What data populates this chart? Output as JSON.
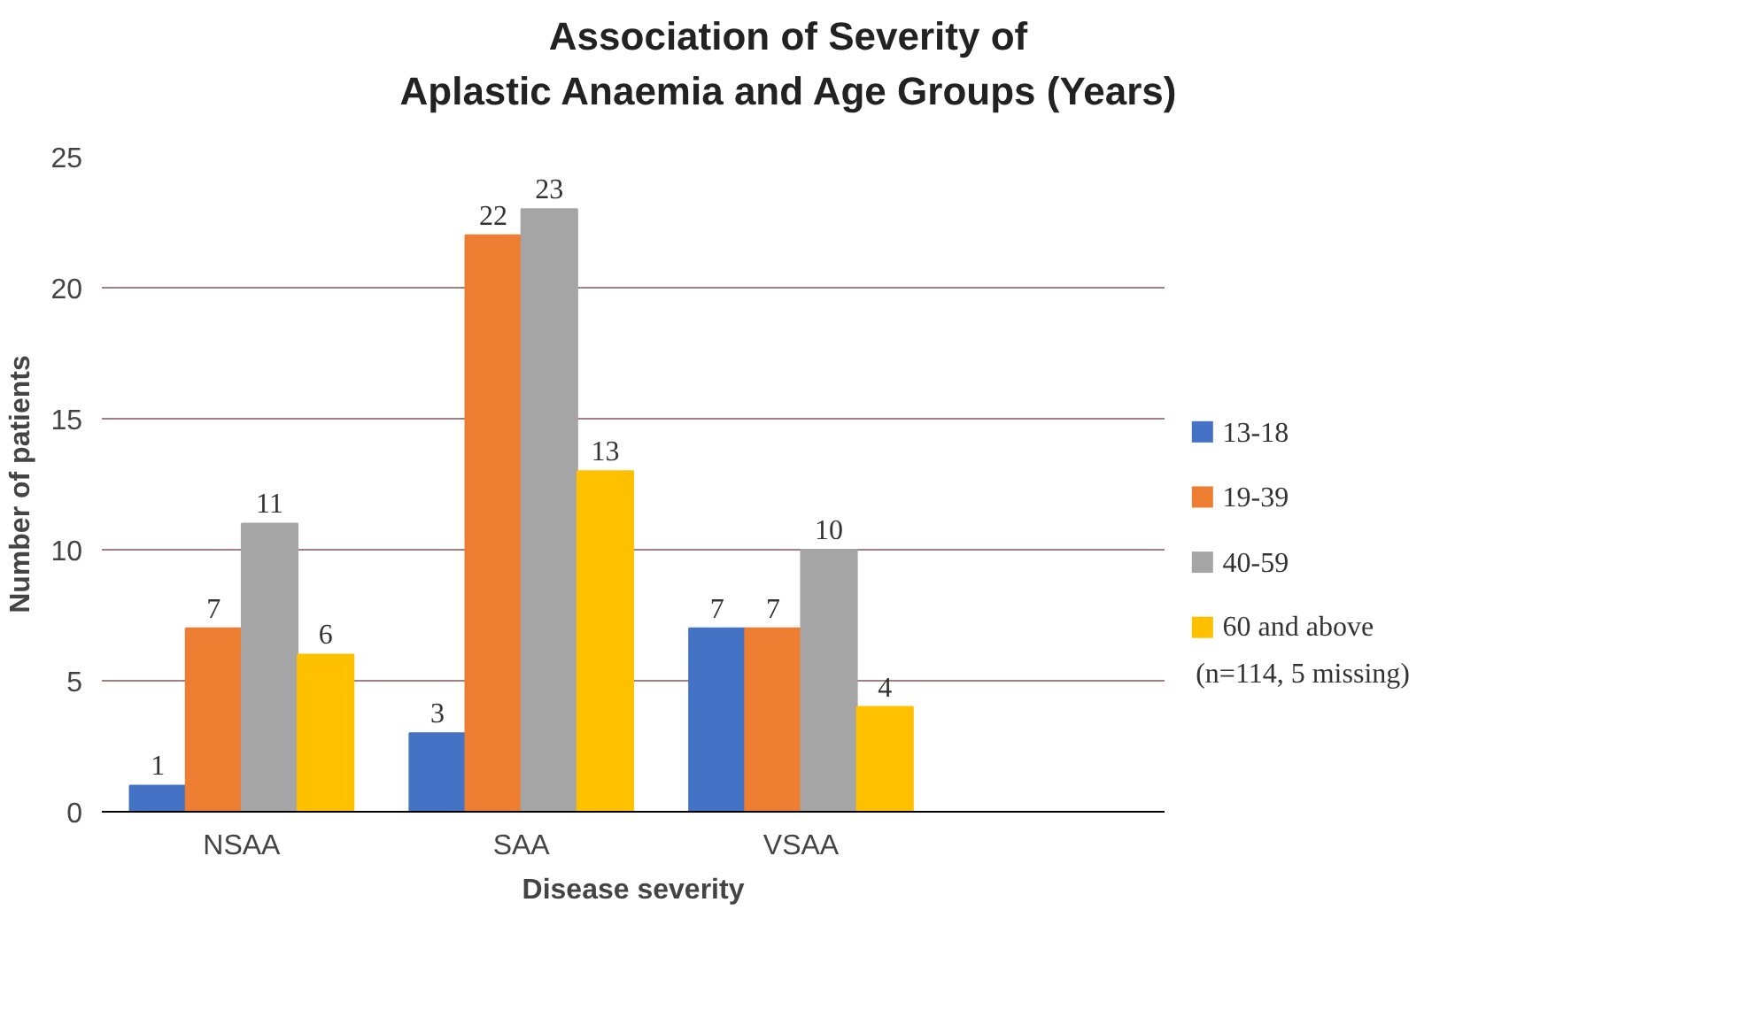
{
  "chart_data": {
    "type": "bar",
    "title": "Association of Severity of\nAplastic Anaemia and Age Groups (Years)",
    "xlabel": "Disease severity",
    "ylabel": "Number of patients",
    "categories": [
      "NSAA",
      "SAA",
      "VSAA"
    ],
    "series": [
      {
        "name": "13-18",
        "color": "#4472c4",
        "values": [
          1,
          3,
          7
        ]
      },
      {
        "name": "19-39",
        "color": "#ed7d31",
        "values": [
          7,
          22,
          7
        ]
      },
      {
        "name": "40-59",
        "color": "#a5a5a5",
        "values": [
          11,
          23,
          10
        ]
      },
      {
        "name": "60 and above",
        "color": "#ffc000",
        "values": [
          6,
          13,
          4
        ]
      }
    ],
    "ylim": [
      0,
      25
    ],
    "yticks": [
      0,
      5,
      10,
      15,
      20,
      25
    ],
    "grid": "y",
    "legend": "right",
    "data_labels": true,
    "annotations": [
      "(n=114, 5 missing)"
    ]
  }
}
